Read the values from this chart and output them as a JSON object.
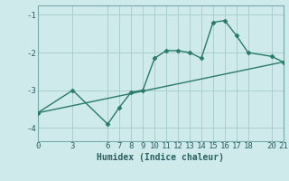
{
  "xlabel": "Humidex (Indice chaleur)",
  "background_color": "#ceeaea",
  "grid_color": "#aacece",
  "line_color": "#2a7a6a",
  "line1_x": [
    0,
    3,
    6,
    7,
    8,
    9,
    10,
    11,
    12,
    13,
    14,
    15,
    16,
    17,
    18,
    20,
    21
  ],
  "line1_y": [
    -3.6,
    -3.0,
    -3.9,
    -3.45,
    -3.05,
    -3.0,
    -2.15,
    -1.95,
    -1.95,
    -2.0,
    -2.15,
    -1.2,
    -1.15,
    -1.55,
    -2.0,
    -2.1,
    -2.25
  ],
  "line2_x": [
    0,
    21
  ],
  "line2_y": [
    -3.6,
    -2.25
  ],
  "xlim": [
    0,
    21
  ],
  "ylim": [
    -4.35,
    -0.75
  ],
  "yticks": [
    -4,
    -3,
    -2,
    -1
  ],
  "xticks": [
    0,
    3,
    6,
    7,
    8,
    9,
    10,
    11,
    12,
    13,
    14,
    15,
    16,
    17,
    18,
    20,
    21
  ],
  "markersize": 2.5,
  "linewidth": 1.0,
  "tick_fontsize": 6.5,
  "xlabel_fontsize": 7.0
}
